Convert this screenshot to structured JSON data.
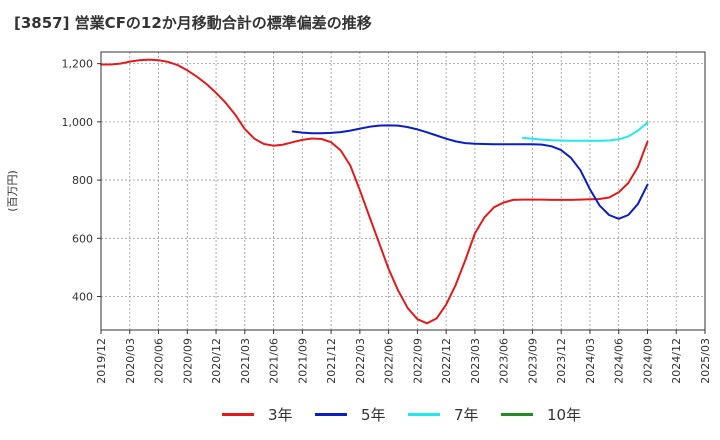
{
  "chart_data": {
    "type": "line",
    "title": "[3857]  営業CFの12か月移動合計の標準偏差の推移",
    "ylabel": "(百万円)",
    "xlabel": "",
    "ylim": [
      285,
      1240
    ],
    "yticks": [
      400,
      600,
      800,
      1000,
      1200
    ],
    "ytick_labels": [
      "400",
      "600",
      "800",
      "1,000",
      "1,200"
    ],
    "xlim": [
      "2019-12",
      "2025-03"
    ],
    "xtick_labels": [
      "2019/12",
      "2020/03",
      "2020/06",
      "2020/09",
      "2020/12",
      "2021/03",
      "2021/06",
      "2021/09",
      "2021/12",
      "2022/03",
      "2022/06",
      "2022/09",
      "2022/12",
      "2023/03",
      "2023/06",
      "2023/09",
      "2023/12",
      "2024/03",
      "2024/06",
      "2024/09",
      "2024/12",
      "2025/03"
    ],
    "grid": true,
    "legend_position": "bottom",
    "series": [
      {
        "name": "3年",
        "color": "#e31a1c",
        "x": [
          "2019-12",
          "2020-01",
          "2020-02",
          "2020-03",
          "2020-04",
          "2020-05",
          "2020-06",
          "2020-07",
          "2020-08",
          "2020-09",
          "2020-10",
          "2020-11",
          "2020-12",
          "2021-01",
          "2021-02",
          "2021-03",
          "2021-04",
          "2021-05",
          "2021-06",
          "2021-07",
          "2021-08",
          "2021-09",
          "2021-10",
          "2021-11",
          "2021-12",
          "2022-01",
          "2022-02",
          "2022-03",
          "2022-04",
          "2022-05",
          "2022-06",
          "2022-07",
          "2022-08",
          "2022-09",
          "2022-10",
          "2022-11",
          "2022-12",
          "2023-01",
          "2023-02",
          "2023-03",
          "2023-04",
          "2023-05",
          "2023-06",
          "2023-07",
          "2023-08",
          "2023-09",
          "2023-10",
          "2023-11",
          "2023-12",
          "2024-01",
          "2024-02",
          "2024-03",
          "2024-04",
          "2024-05",
          "2024-06",
          "2024-07",
          "2024-08",
          "2024-09"
        ],
        "values": [
          1197,
          1197,
          1200,
          1207,
          1212,
          1214,
          1212,
          1206,
          1195,
          1177,
          1155,
          1130,
          1100,
          1066,
          1025,
          975,
          942,
          924,
          918,
          922,
          930,
          938,
          943,
          941,
          930,
          902,
          850,
          765,
          675,
          585,
          495,
          420,
          360,
          322,
          308,
          325,
          372,
          440,
          525,
          617,
          672,
          707,
          723,
          732,
          733,
          733,
          733,
          732,
          732,
          732,
          733,
          734,
          735,
          740,
          758,
          790,
          845,
          932
        ]
      },
      {
        "name": "5年",
        "color": "#0a1ec8",
        "x": [
          "2021-08",
          "2021-09",
          "2021-10",
          "2021-11",
          "2021-12",
          "2022-01",
          "2022-02",
          "2022-03",
          "2022-04",
          "2022-05",
          "2022-06",
          "2022-07",
          "2022-08",
          "2022-09",
          "2022-10",
          "2022-11",
          "2022-12",
          "2023-01",
          "2023-02",
          "2023-03",
          "2023-04",
          "2023-05",
          "2023-06",
          "2023-07",
          "2023-08",
          "2023-09",
          "2023-10",
          "2023-11",
          "2023-12",
          "2024-01",
          "2024-02",
          "2024-03",
          "2024-04",
          "2024-05",
          "2024-06",
          "2024-07",
          "2024-08",
          "2024-09"
        ],
        "values": [
          967,
          963,
          961,
          961,
          962,
          965,
          970,
          977,
          983,
          987,
          988,
          987,
          982,
          974,
          964,
          953,
          942,
          933,
          927,
          925,
          924,
          923,
          923,
          923,
          923,
          923,
          922,
          916,
          903,
          877,
          834,
          768,
          713,
          680,
          667,
          680,
          718,
          784
        ]
      },
      {
        "name": "7年",
        "color": "#20e8f0",
        "x": [
          "2023-08",
          "2023-09",
          "2023-10",
          "2023-11",
          "2023-12",
          "2024-01",
          "2024-02",
          "2024-03",
          "2024-04",
          "2024-05",
          "2024-06",
          "2024-07",
          "2024-08",
          "2024-09"
        ],
        "values": [
          945,
          942,
          939,
          937,
          936,
          935,
          935,
          935,
          935,
          936,
          940,
          950,
          970,
          997
        ]
      },
      {
        "name": "10年",
        "color": "#228b22",
        "x": [],
        "values": []
      }
    ]
  }
}
